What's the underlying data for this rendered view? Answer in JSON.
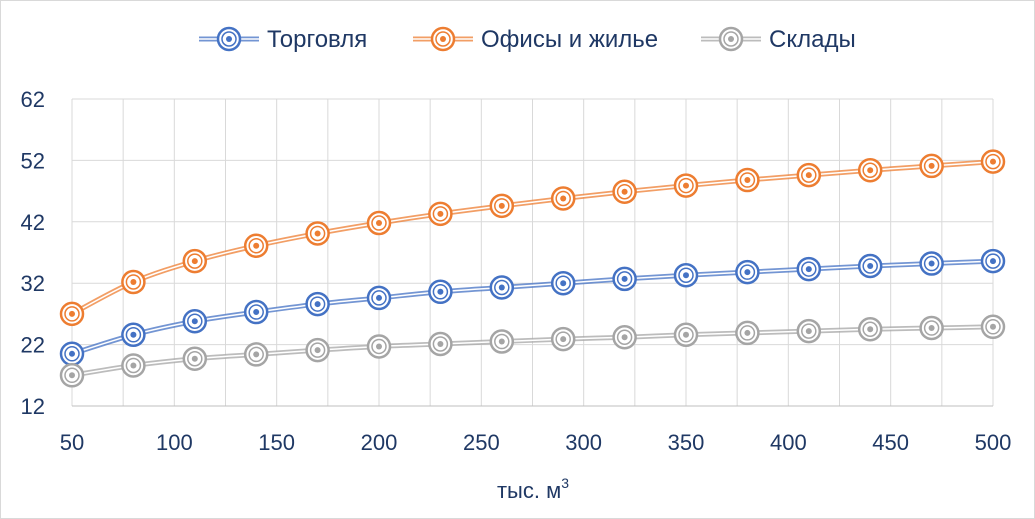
{
  "chart_data": {
    "type": "line",
    "title": "",
    "xlabel": "тыс. м",
    "xlabel_superscript": "3",
    "ylabel": "",
    "x": [
      50,
      80,
      110,
      140,
      170,
      200,
      230,
      260,
      290,
      320,
      350,
      380,
      410,
      440,
      470,
      500
    ],
    "xticks": [
      50,
      100,
      150,
      200,
      250,
      300,
      350,
      400,
      450,
      500
    ],
    "xlim": [
      50,
      500
    ],
    "yticks": [
      12,
      22,
      32,
      42,
      52,
      62
    ],
    "ylim": [
      12,
      62
    ],
    "grid": true,
    "legend_position": "top",
    "series": [
      {
        "name": "Торговля",
        "color": "#4472c4",
        "values": [
          20.5,
          23.6,
          25.8,
          27.3,
          28.6,
          29.6,
          30.6,
          31.3,
          32.0,
          32.7,
          33.3,
          33.8,
          34.3,
          34.8,
          35.2,
          35.6
        ]
      },
      {
        "name": "Офисы и жилье",
        "color": "#ed7d31",
        "values": [
          27.0,
          32.2,
          35.6,
          38.1,
          40.1,
          41.8,
          43.3,
          44.6,
          45.8,
          46.9,
          47.9,
          48.8,
          49.6,
          50.4,
          51.1,
          51.8
        ]
      },
      {
        "name": "Склады",
        "color": "#a5a5a5",
        "values": [
          17.0,
          18.6,
          19.7,
          20.4,
          21.1,
          21.7,
          22.1,
          22.5,
          22.9,
          23.2,
          23.6,
          23.9,
          24.2,
          24.5,
          24.7,
          24.9
        ]
      }
    ]
  }
}
